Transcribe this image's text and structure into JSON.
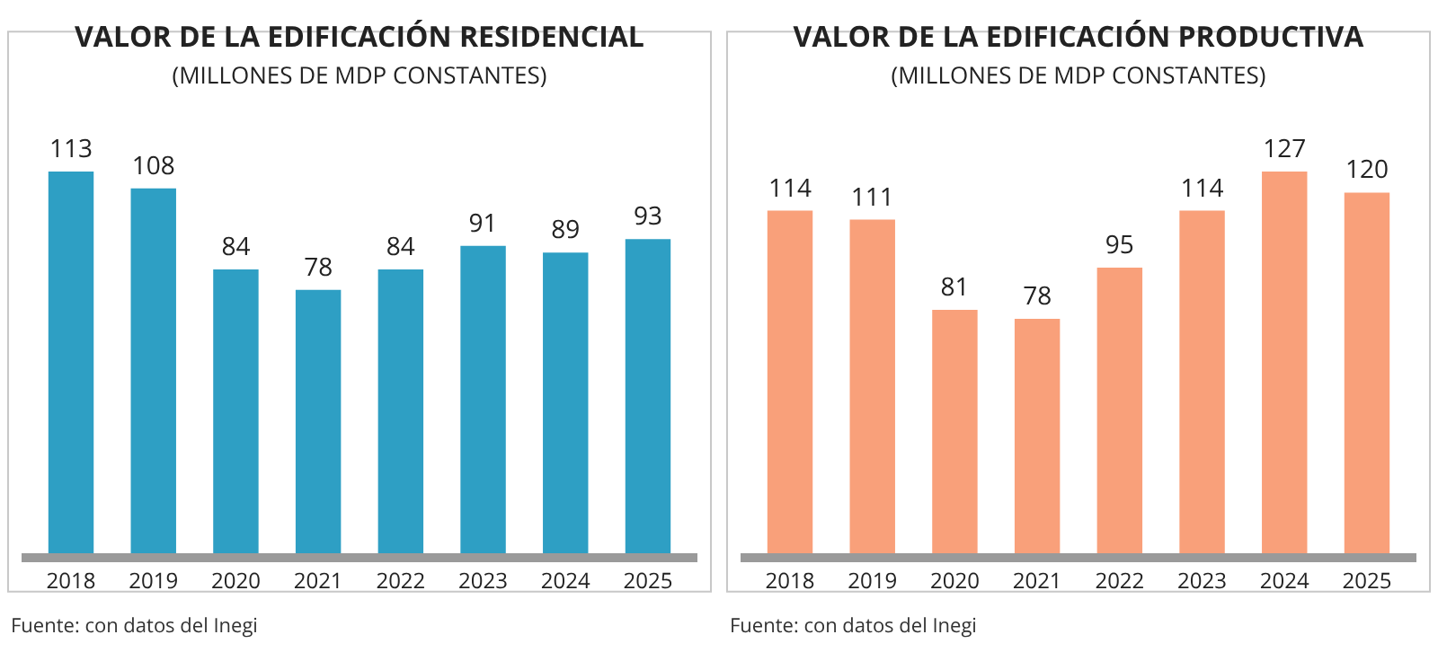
{
  "chart_data": [
    {
      "type": "bar",
      "title": "VALOR DE LA EDIFICACIÓN RESIDENCIAL",
      "subtitle": "(MILLONES DE MDP CONSTANTES)",
      "categories": [
        "2018",
        "2019",
        "2020",
        "2021",
        "2022",
        "2023",
        "2024",
        "2025"
      ],
      "values": [
        113,
        108,
        84,
        78,
        84,
        91,
        89,
        93
      ],
      "color": "#2e9fc4",
      "data_labels": true,
      "annotations": [
        "Fuente: con datos del Inegi"
      ]
    },
    {
      "type": "bar",
      "title": "VALOR DE LA EDIFICACIÓN PRODUCTIVA",
      "subtitle": "(MILLONES DE MDP CONSTANTES)",
      "categories": [
        "2018",
        "2019",
        "2020",
        "2021",
        "2022",
        "2023",
        "2024",
        "2025"
      ],
      "values": [
        114,
        111,
        81,
        78,
        95,
        114,
        127,
        120
      ],
      "color": "#f9a07a",
      "data_labels": true,
      "annotations": [
        "Fuente: con datos del Inegi"
      ]
    }
  ]
}
